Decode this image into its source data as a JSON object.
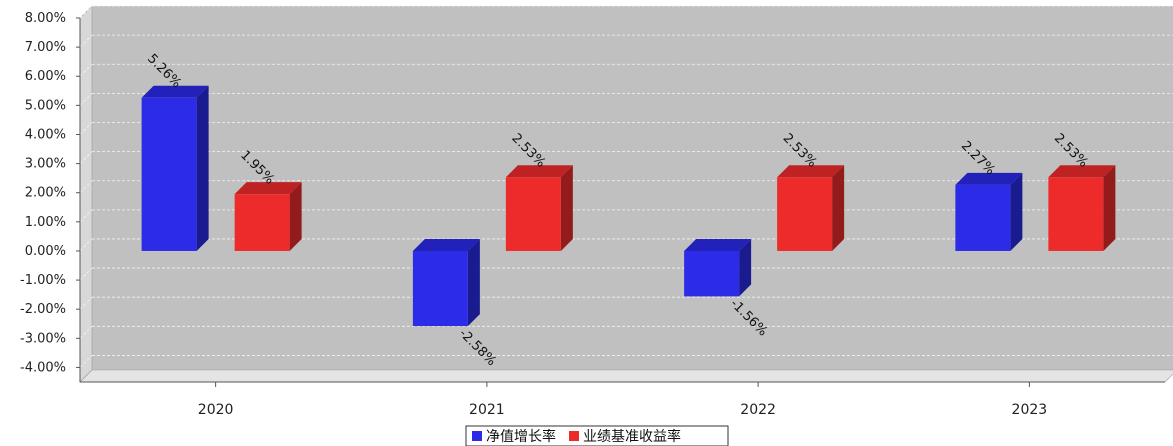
{
  "chart_data": {
    "type": "bar",
    "categories": [
      "2020",
      "2021",
      "2022",
      "2023"
    ],
    "series": [
      {
        "name": "净值增长率",
        "values": [
          5.26,
          -2.58,
          -1.56,
          2.27
        ],
        "labels": [
          "5.26%",
          "-2.58%",
          "-1.56%",
          "2.27%"
        ],
        "color": "#2b2be8"
      },
      {
        "name": "业绩基准收益率",
        "values": [
          1.95,
          2.53,
          2.53,
          2.53
        ],
        "labels": [
          "1.95%",
          "2.53%",
          "2.53%",
          "2.53%"
        ],
        "color": "#ee2b2b"
      }
    ],
    "y_ticks": [
      8,
      7,
      6,
      5,
      4,
      3,
      2,
      1,
      0,
      -1,
      -2,
      -3,
      -4
    ],
    "y_tick_labels": [
      "8.00%",
      "7.00%",
      "6.00%",
      "5.00%",
      "4.00%",
      "3.00%",
      "2.00%",
      "1.00%",
      "0.00%",
      "-1.00%",
      "-2.00%",
      "-3.00%",
      "-4.00%"
    ],
    "ylim": [
      -4.5,
      8
    ],
    "grid": true,
    "legend_position": "bottom-center",
    "plot_background": "#c0c0c0",
    "wall_color": "#d8d8d8",
    "title": "",
    "xlabel": "",
    "ylabel": ""
  }
}
